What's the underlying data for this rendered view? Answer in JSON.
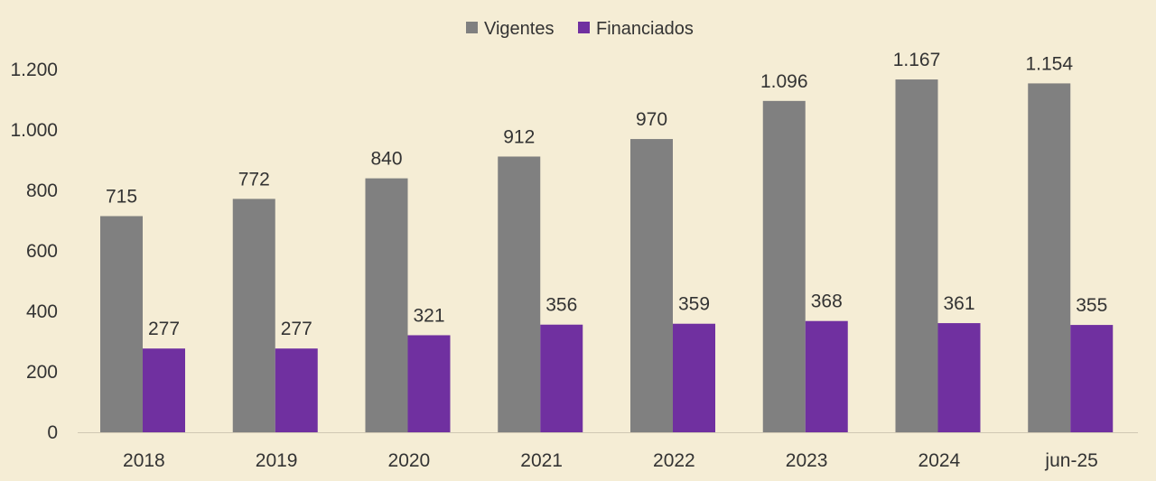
{
  "chart_data": {
    "type": "bar",
    "categories": [
      "2018",
      "2019",
      "2020",
      "2021",
      "2022",
      "2023",
      "2024",
      "jun-25"
    ],
    "series": [
      {
        "name": "Vigentes",
        "color": "#808080",
        "values": [
          715,
          772,
          840,
          912,
          970,
          1096,
          1167,
          1154
        ],
        "labels": [
          "715",
          "772",
          "840",
          "912",
          "970",
          "1.096",
          "1.167",
          "1.154"
        ]
      },
      {
        "name": "Financiados",
        "color": "#7030a0",
        "values": [
          277,
          277,
          321,
          356,
          359,
          368,
          361,
          355
        ],
        "labels": [
          "277",
          "277",
          "321",
          "356",
          "359",
          "368",
          "361",
          "355"
        ]
      }
    ],
    "ylim": [
      0,
      1200
    ],
    "yticks": [
      0,
      200,
      400,
      600,
      800,
      1000,
      1200
    ],
    "ytick_labels": [
      "0",
      "200",
      "400",
      "600",
      "800",
      "1.000",
      "1.200"
    ],
    "legend_position": "top-center",
    "grid": false,
    "background": "#f5edd5"
  }
}
